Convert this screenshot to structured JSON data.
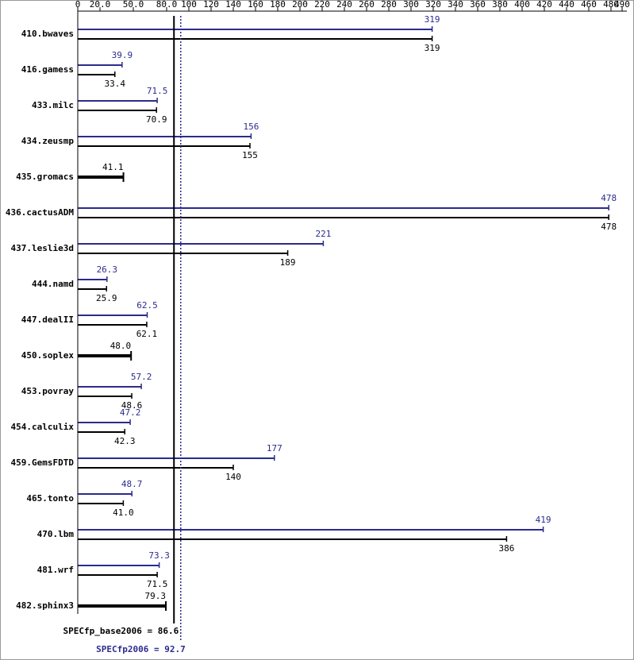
{
  "chart_data": {
    "type": "bar",
    "categories": [
      "410.bwaves",
      "416.gamess",
      "433.milc",
      "434.zeusmp",
      "435.gromacs",
      "436.cactusADM",
      "437.leslie3d",
      "444.namd",
      "447.dealII",
      "450.soplex",
      "453.povray",
      "454.calculix",
      "459.GemsFDTD",
      "465.tonto",
      "470.lbm",
      "481.wrf",
      "482.sphinx3"
    ],
    "series": [
      {
        "color": "#2b2b8f",
        "values": [
          319,
          39.9,
          71.5,
          156,
          null,
          478,
          221,
          26.3,
          62.5,
          null,
          57.2,
          47.2,
          177,
          48.7,
          419,
          73.3,
          null
        ]
      },
      {
        "color": "#000000",
        "values": [
          319,
          33.4,
          70.9,
          155,
          41.1,
          478,
          189,
          25.9,
          62.1,
          48.0,
          48.6,
          42.3,
          140,
          41.0,
          386,
          71.5,
          79.3
        ],
        "value_labels": [
          "319",
          "33.4",
          "70.9",
          "155",
          "41.1",
          "478",
          "189",
          "25.9",
          "62.1",
          "48.0",
          "48.6",
          "42.3",
          "140",
          "41.0",
          "386",
          "71.5",
          "79.3"
        ]
      }
    ],
    "xlim": [
      0,
      490
    ],
    "xticks": [
      0,
      {
        "value": 20,
        "label": "20.0"
      },
      {
        "value": 50,
        "label": "50.0"
      },
      {
        "value": 80,
        "label": "80.0"
      },
      100,
      120,
      140,
      160,
      180,
      200,
      220,
      240,
      260,
      280,
      300,
      320,
      340,
      360,
      380,
      400,
      420,
      440,
      460,
      480,
      490
    ],
    "reference_lines": [
      {
        "label": "SPECfp_base2006 = 86.6",
        "value": 86.6,
        "color": "#000000",
        "style": "solid"
      },
      {
        "label": "SPECfp2006 = 92.7",
        "value": 92.7,
        "color": "#2b2b8f",
        "style": "dotted"
      }
    ]
  }
}
